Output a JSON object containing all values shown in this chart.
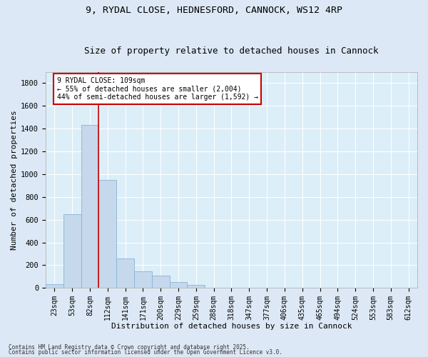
{
  "title_line1": "9, RYDAL CLOSE, HEDNESFORD, CANNOCK, WS12 4RP",
  "title_line2": "Size of property relative to detached houses in Cannock",
  "xlabel": "Distribution of detached houses by size in Cannock",
  "ylabel": "Number of detached properties",
  "categories": [
    "23sqm",
    "53sqm",
    "82sqm",
    "112sqm",
    "141sqm",
    "171sqm",
    "200sqm",
    "229sqm",
    "259sqm",
    "288sqm",
    "318sqm",
    "347sqm",
    "377sqm",
    "406sqm",
    "435sqm",
    "465sqm",
    "494sqm",
    "524sqm",
    "553sqm",
    "583sqm",
    "612sqm"
  ],
  "bar_heights": [
    35,
    650,
    1430,
    950,
    260,
    145,
    110,
    55,
    25,
    0,
    0,
    0,
    0,
    0,
    0,
    0,
    0,
    0,
    0,
    0,
    0
  ],
  "bar_color": "#c5d8ec",
  "bar_edge_color": "#8ab4d4",
  "vline_color": "#cc0000",
  "vline_pos": 2.5,
  "ylim": [
    0,
    1900
  ],
  "yticks": [
    0,
    200,
    400,
    600,
    800,
    1000,
    1200,
    1400,
    1600,
    1800
  ],
  "annotation_text": "9 RYDAL CLOSE: 109sqm\n← 55% of detached houses are smaller (2,004)\n44% of semi-detached houses are larger (1,592) →",
  "annotation_box_color": "#ffffff",
  "annotation_box_edge": "#cc0000",
  "footer_line1": "Contains HM Land Registry data © Crown copyright and database right 2025.",
  "footer_line2": "Contains public sector information licensed under the Open Government Licence v3.0.",
  "bg_color": "#dce8f5",
  "plot_bg_color": "#dceef8",
  "grid_color": "#ffffff",
  "title_fontsize": 9.5,
  "subtitle_fontsize": 9,
  "tick_fontsize": 7,
  "xlabel_fontsize": 8,
  "ylabel_fontsize": 8,
  "annotation_fontsize": 7,
  "footer_fontsize": 5.5
}
